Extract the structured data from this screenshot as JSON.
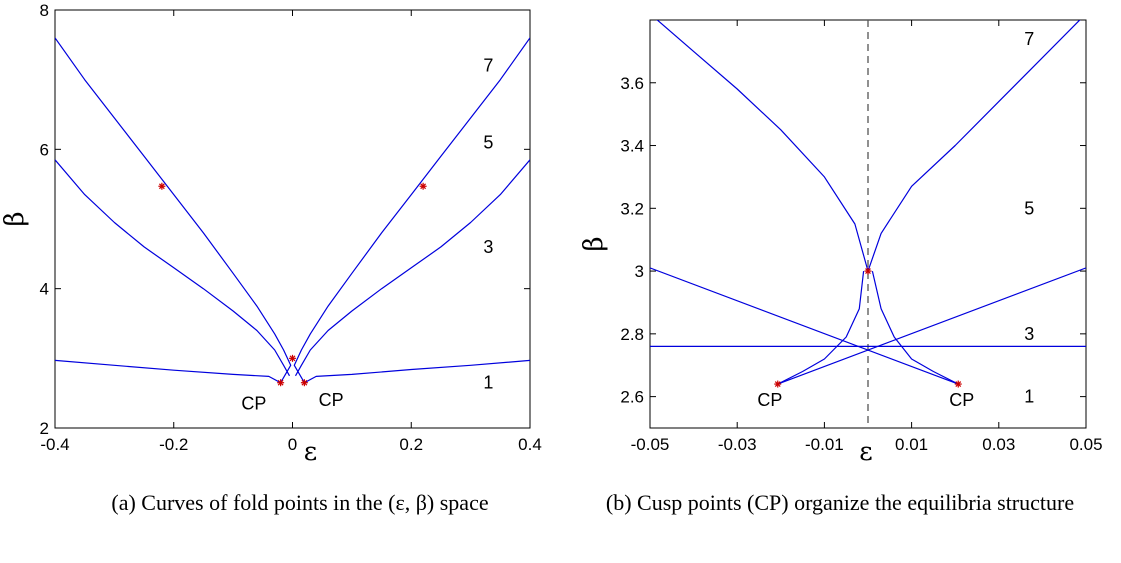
{
  "chart_data": [
    {
      "type": "line",
      "panel": "a",
      "caption": "(a) Curves of fold points in the (ε, β) space",
      "xlabel": "ε",
      "ylabel": "β",
      "xlim": [
        -0.4,
        0.4
      ],
      "ylim": [
        2,
        8
      ],
      "xticks": [
        -0.4,
        -0.2,
        0,
        0.2,
        0.4
      ],
      "xtick_labels": [
        "-0.4",
        "-0.2",
        "0",
        "0.2",
        "0.4"
      ],
      "yticks": [
        2,
        4,
        6,
        8
      ],
      "ytick_labels": [
        "2",
        "4",
        "6",
        "8"
      ],
      "grid": false,
      "series": [
        {
          "x": [
            -0.4,
            -0.3,
            -0.2,
            -0.1,
            -0.04,
            -0.02
          ],
          "y": [
            2.97,
            2.9,
            2.83,
            2.77,
            2.74,
            2.65
          ]
        },
        {
          "x": [
            0.02,
            0.04,
            0.1,
            0.2,
            0.3,
            0.4
          ],
          "y": [
            2.65,
            2.74,
            2.77,
            2.84,
            2.9,
            2.97
          ]
        },
        {
          "x": [
            -0.4,
            -0.35,
            -0.3,
            -0.25,
            -0.2,
            -0.15,
            -0.1,
            -0.06,
            -0.03,
            -0.015,
            -0.005
          ],
          "y": [
            5.85,
            5.35,
            4.95,
            4.6,
            4.3,
            4.0,
            3.68,
            3.4,
            3.12,
            2.9,
            2.75
          ]
        },
        {
          "x": [
            0.005,
            0.015,
            0.03,
            0.06,
            0.1,
            0.15,
            0.2,
            0.25,
            0.3,
            0.35,
            0.4
          ],
          "y": [
            2.75,
            2.9,
            3.12,
            3.4,
            3.68,
            4.0,
            4.3,
            4.6,
            4.95,
            5.35,
            5.85
          ]
        },
        {
          "x": [
            -0.4,
            -0.35,
            -0.3,
            -0.25,
            -0.2,
            -0.15,
            -0.1,
            -0.06,
            -0.03,
            -0.015,
            -0.003,
            -0.02
          ],
          "y": [
            7.6,
            7.0,
            6.45,
            5.9,
            5.35,
            4.8,
            4.22,
            3.75,
            3.35,
            3.12,
            2.9,
            2.65
          ]
        },
        {
          "x": [
            0.02,
            0.003,
            0.015,
            0.03,
            0.06,
            0.1,
            0.15,
            0.2,
            0.25,
            0.3,
            0.35,
            0.4
          ],
          "y": [
            2.65,
            2.9,
            3.12,
            3.35,
            3.75,
            4.22,
            4.8,
            5.35,
            5.9,
            6.45,
            7.0,
            7.6
          ]
        }
      ],
      "markers": [
        {
          "x": -0.22,
          "y": 5.47
        },
        {
          "x": 0.22,
          "y": 5.47
        },
        {
          "x": 0.0,
          "y": 3.0
        },
        {
          "x": -0.02,
          "y": 2.65
        },
        {
          "x": 0.02,
          "y": 2.65
        }
      ],
      "annotations": [
        {
          "text": "7",
          "x": 0.33,
          "y": 7.2
        },
        {
          "text": "5",
          "x": 0.33,
          "y": 6.1
        },
        {
          "text": "3",
          "x": 0.33,
          "y": 4.6
        },
        {
          "text": "1",
          "x": 0.33,
          "y": 2.65
        },
        {
          "text": "CP",
          "x": -0.065,
          "y": 2.35
        },
        {
          "text": "CP",
          "x": 0.065,
          "y": 2.4
        }
      ],
      "line_color": "#0000dd",
      "marker_color": "#cc0000"
    },
    {
      "type": "line",
      "panel": "b",
      "caption": "(b) Cusp points (CP) organize the equilibria structure",
      "xlabel": "ε",
      "ylabel": "β",
      "xlim": [
        -0.05,
        0.05
      ],
      "ylim": [
        2.5,
        3.8
      ],
      "xticks": [
        -0.05,
        -0.03,
        -0.01,
        0.01,
        0.03,
        0.05
      ],
      "xtick_labels": [
        "-0.05",
        "-0.03",
        "-0.01",
        "0.01",
        "0.03",
        "0.05"
      ],
      "yticks": [
        2.6,
        2.8,
        3.0,
        3.2,
        3.4,
        3.6
      ],
      "ytick_labels": [
        "2.6",
        "2.8",
        "3",
        "3.2",
        "3.4",
        "3.6"
      ],
      "grid": false,
      "vline": 0,
      "series": [
        {
          "x": [
            -0.05,
            0.05
          ],
          "y": [
            2.76,
            2.76
          ]
        },
        {
          "x": [
            -0.05,
            0.0207
          ],
          "y": [
            3.01,
            2.64
          ]
        },
        {
          "x": [
            -0.0207,
            0.05
          ],
          "y": [
            2.64,
            3.01
          ]
        },
        {
          "x": [
            -0.0207,
            -0.015,
            -0.01,
            -0.005,
            -0.002,
            -0.001
          ],
          "y": [
            2.64,
            2.68,
            2.72,
            2.79,
            2.88,
            3.0
          ]
        },
        {
          "x": [
            0.0207,
            0.015,
            0.01,
            0.006,
            0.003,
            0.001
          ],
          "y": [
            2.64,
            2.68,
            2.72,
            2.79,
            2.88,
            3.0
          ]
        },
        {
          "x": [
            -0.05,
            -0.04,
            -0.03,
            -0.02,
            -0.01,
            -0.003,
            0.0
          ],
          "y": [
            3.82,
            3.7,
            3.58,
            3.45,
            3.3,
            3.15,
            3.0
          ]
        },
        {
          "x": [
            0.0,
            0.003,
            0.01,
            0.02,
            0.03,
            0.04,
            0.05
          ],
          "y": [
            3.0,
            3.12,
            3.27,
            3.4,
            3.54,
            3.68,
            3.82
          ]
        }
      ],
      "markers": [
        {
          "x": 0.0,
          "y": 3.0
        },
        {
          "x": -0.0207,
          "y": 2.64
        },
        {
          "x": 0.0207,
          "y": 2.64
        }
      ],
      "annotations": [
        {
          "text": "7",
          "x": 0.037,
          "y": 3.74
        },
        {
          "text": "5",
          "x": 0.037,
          "y": 3.2
        },
        {
          "text": "3",
          "x": 0.037,
          "y": 2.8
        },
        {
          "text": "1",
          "x": 0.037,
          "y": 2.6
        },
        {
          "text": "CP",
          "x": -0.0225,
          "y": 2.59
        },
        {
          "text": "CP",
          "x": 0.0215,
          "y": 2.59
        }
      ],
      "line_color": "#0000dd",
      "marker_color": "#cc0000"
    }
  ]
}
